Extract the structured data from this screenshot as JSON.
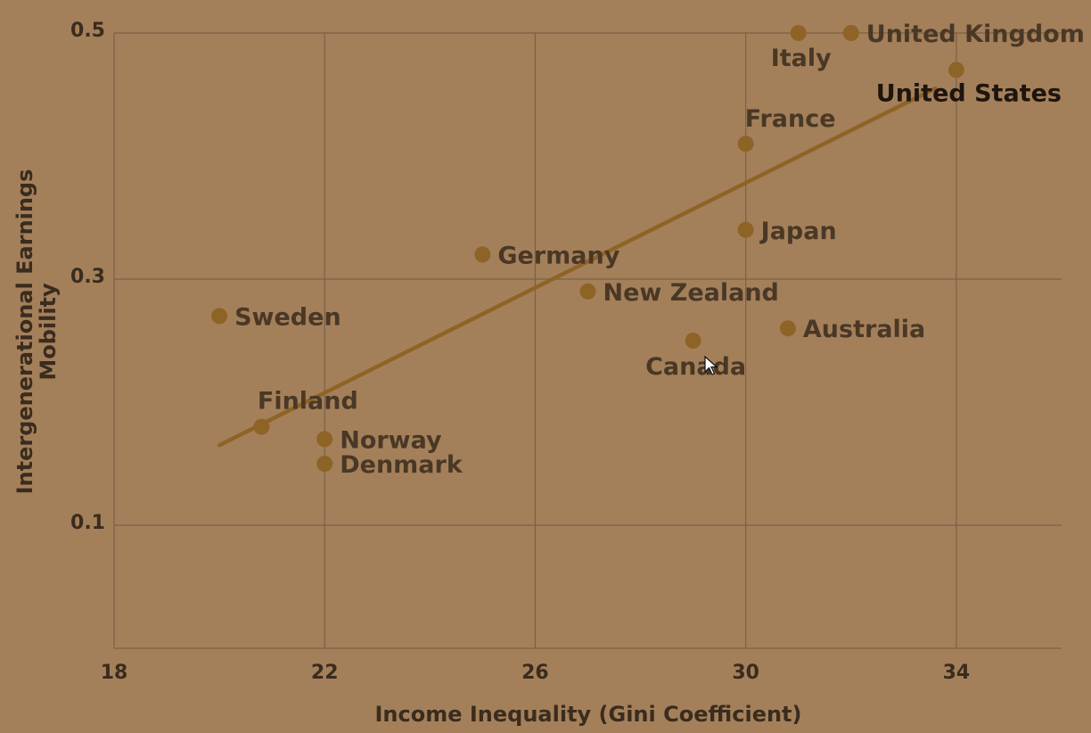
{
  "chart_data": {
    "type": "scatter",
    "title": "",
    "xlabel": "Income Inequality (Gini Coefficient)",
    "ylabel": "Intergenerational Earnings Mobility",
    "xlim": [
      18,
      36
    ],
    "ylim": [
      0,
      0.5
    ],
    "xticks": [
      18,
      22,
      26,
      30,
      34
    ],
    "yticks": [
      0.1,
      0.3,
      0.5
    ],
    "x_tick_labels": [
      "18",
      "22",
      "26",
      "30",
      "34"
    ],
    "y_tick_labels": [
      "0.1",
      "0.3",
      "0.5"
    ],
    "grid": true,
    "points": [
      {
        "label": "Italy",
        "x": 31,
        "y": 0.5,
        "label_pos": "below"
      },
      {
        "label": "United Kingdom",
        "x": 32,
        "y": 0.5,
        "label_pos": "right"
      },
      {
        "label": "United States",
        "x": 34,
        "y": 0.47,
        "label_pos": "below-left",
        "highlight": true
      },
      {
        "label": "France",
        "x": 30,
        "y": 0.41,
        "label_pos": "above"
      },
      {
        "label": "Japan",
        "x": 30,
        "y": 0.34,
        "label_pos": "right"
      },
      {
        "label": "Germany",
        "x": 25,
        "y": 0.32,
        "label_pos": "right"
      },
      {
        "label": "New Zealand",
        "x": 27,
        "y": 0.29,
        "label_pos": "right"
      },
      {
        "label": "Sweden",
        "x": 20,
        "y": 0.27,
        "label_pos": "right"
      },
      {
        "label": "Australia",
        "x": 30.8,
        "y": 0.26,
        "label_pos": "right"
      },
      {
        "label": "Canada",
        "x": 29,
        "y": 0.25,
        "label_pos": "below"
      },
      {
        "label": "Finland",
        "x": 20.8,
        "y": 0.18,
        "label_pos": "above"
      },
      {
        "label": "Norway",
        "x": 22,
        "y": 0.17,
        "label_pos": "right"
      },
      {
        "label": "Denmark",
        "x": 22,
        "y": 0.15,
        "label_pos": "right"
      }
    ],
    "trendline": {
      "x": [
        20,
        33.6
      ],
      "y": [
        0.165,
        0.455
      ]
    }
  }
}
